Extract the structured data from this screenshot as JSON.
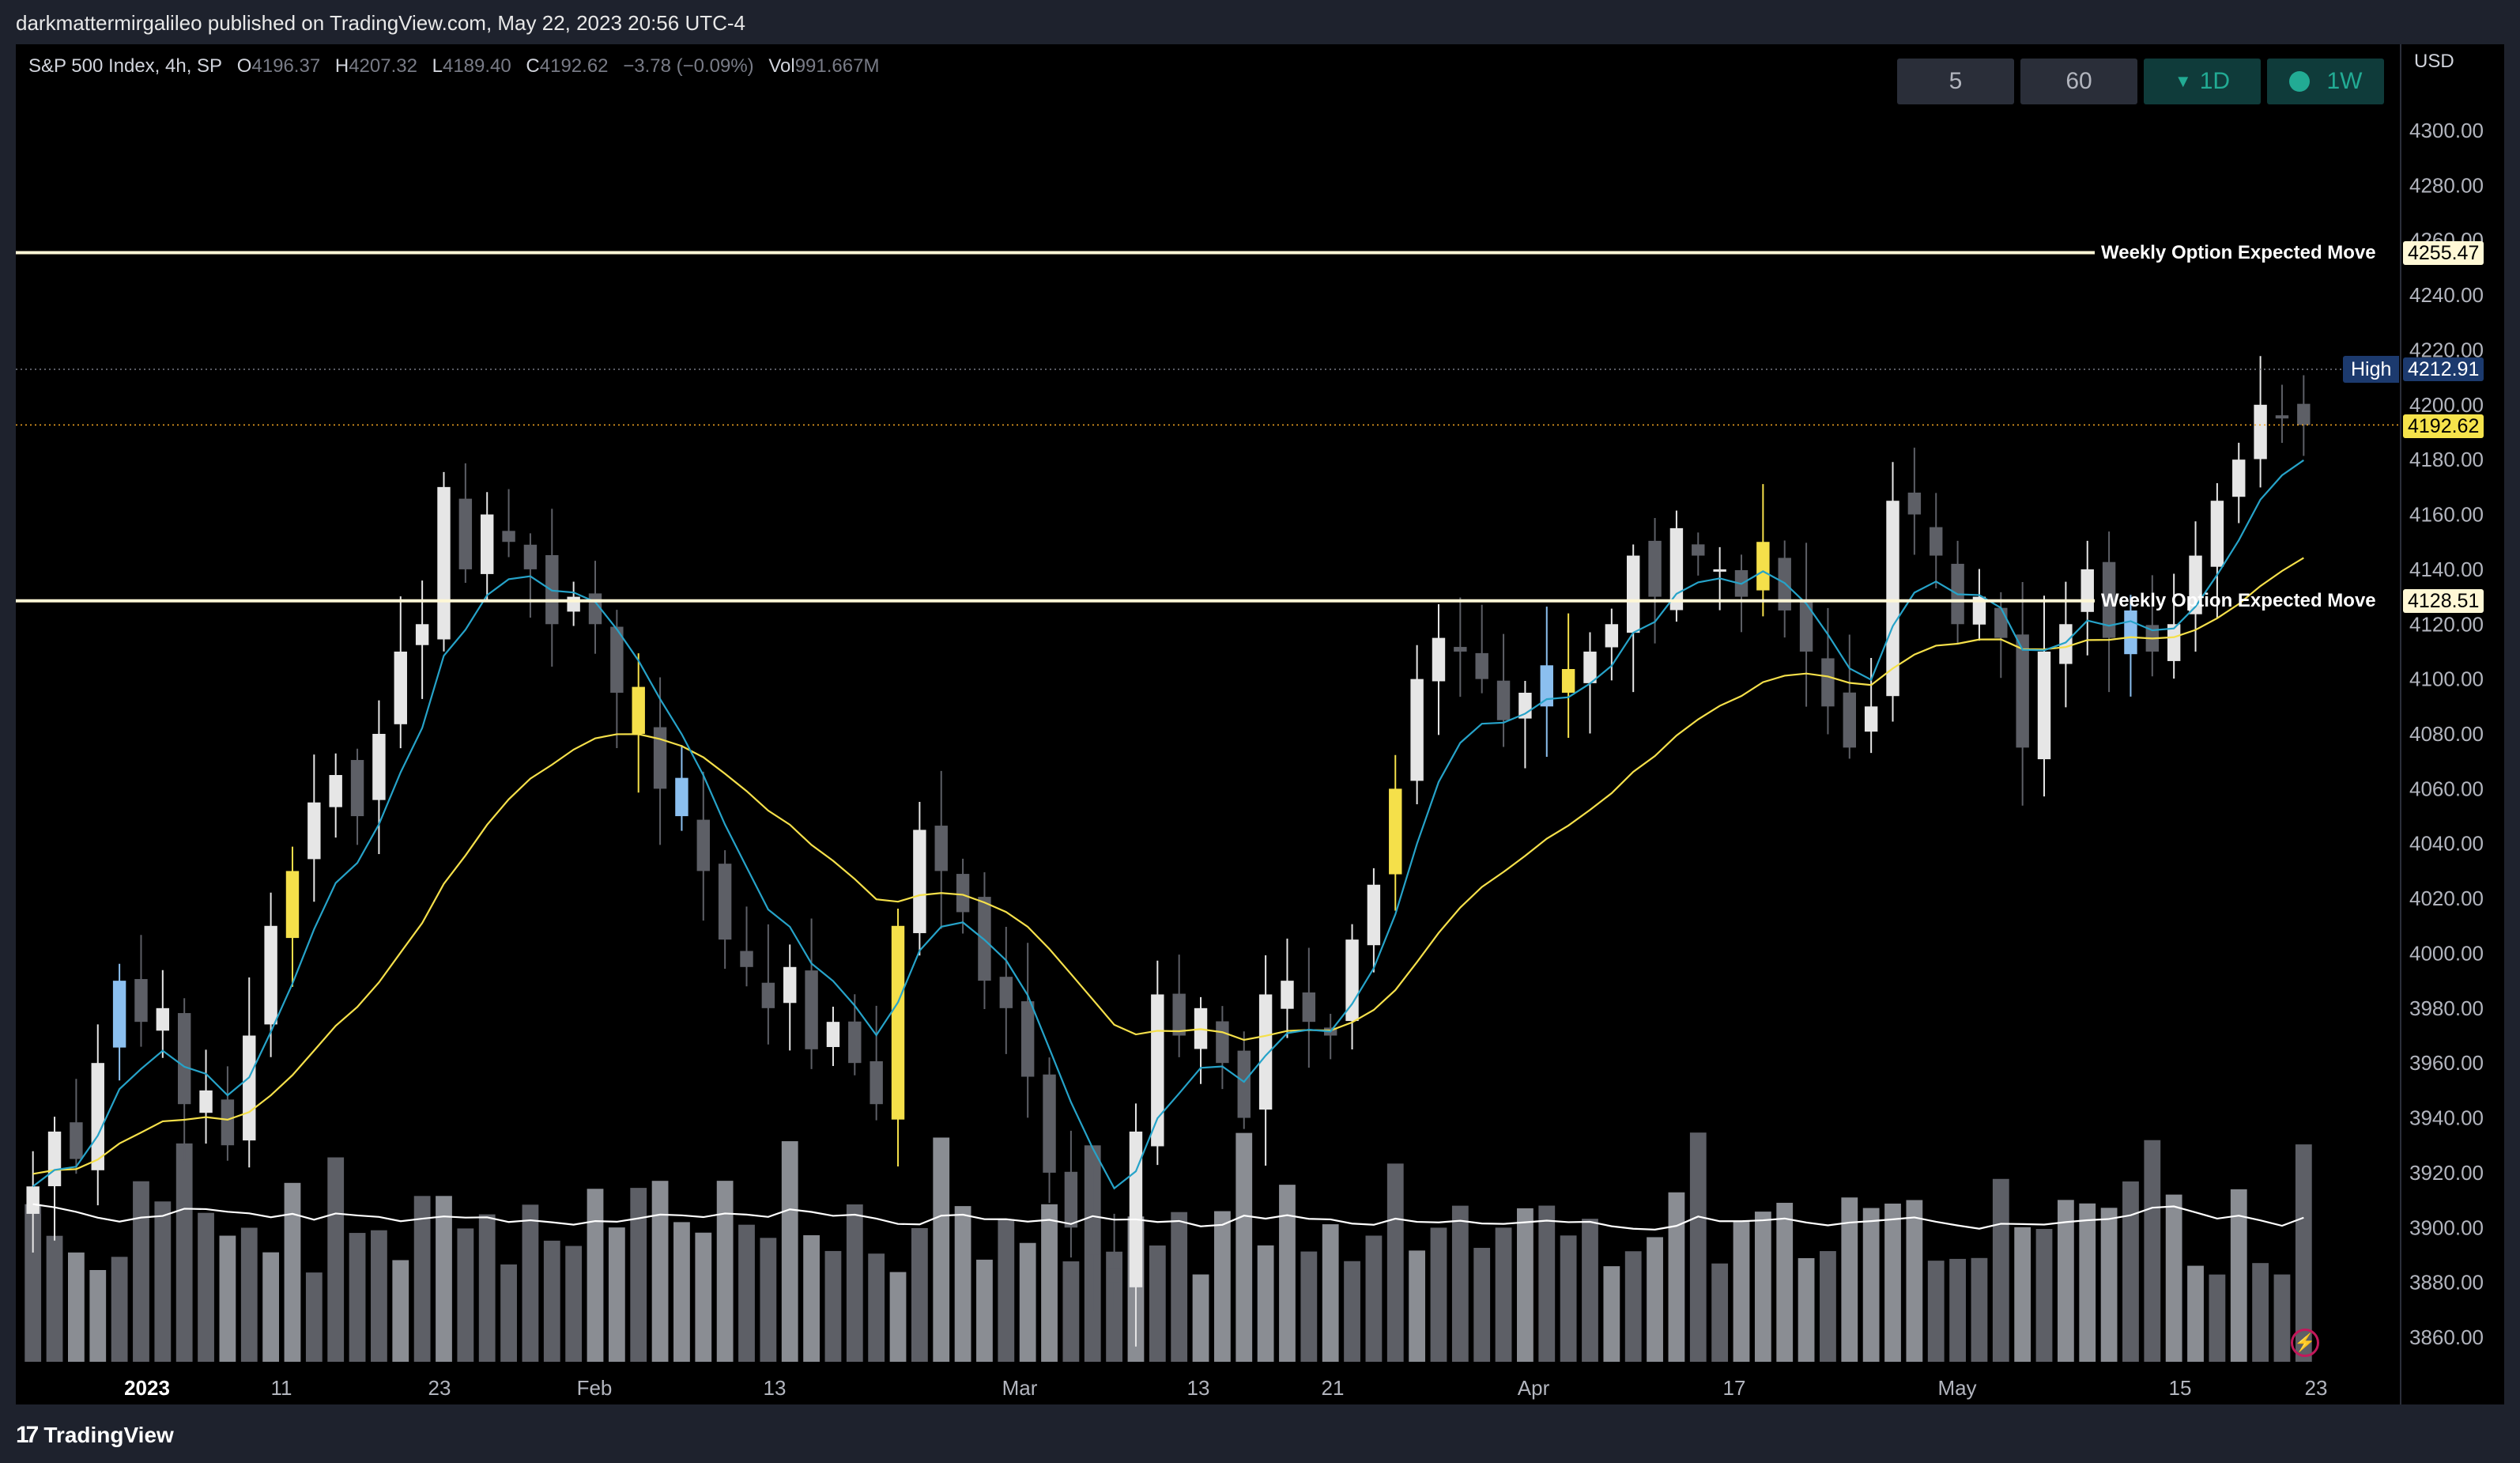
{
  "header": {
    "published": "darkmattermirgalileo published on TradingView.com, May 22, 2023 20:56 UTC-4"
  },
  "symbol": {
    "name": "S&P 500 Index, 4h, SP",
    "open_label": "O",
    "open": "4196.37",
    "high_label": "H",
    "high": "4207.32",
    "low_label": "L",
    "low": "4189.40",
    "close_label": "C",
    "close": "4192.62",
    "change": "−3.78 (−0.09%)",
    "vol_label": "Vol",
    "vol": "991.667M"
  },
  "timeframes": [
    {
      "label": "5"
    },
    {
      "label": "60"
    },
    {
      "label": "1D",
      "icon": "triangle-down-icon"
    },
    {
      "label": "1W",
      "icon": "dot-icon"
    }
  ],
  "price_axis": {
    "currency": "USD",
    "ticks": [
      "4300.00",
      "4280.00",
      "4260.00",
      "4240.00",
      "4220.00",
      "4200.00",
      "4180.00",
      "4160.00",
      "4140.00",
      "4120.00",
      "4100.00",
      "4080.00",
      "4060.00",
      "4040.00",
      "4020.00",
      "4000.00",
      "3980.00",
      "3960.00",
      "3940.00",
      "3920.00",
      "3900.00",
      "3880.00",
      "3860.00"
    ]
  },
  "time_axis": {
    "ticks": [
      "2023",
      "11",
      "23",
      "Feb",
      "13",
      "Mar",
      "13",
      "21",
      "Apr",
      "17",
      "May",
      "15",
      "23"
    ]
  },
  "levels": {
    "upper": {
      "label": "Weekly Option Expected Move",
      "value": "4255.47"
    },
    "lower": {
      "label": "Weekly Option Expected Move",
      "value": "4128.51"
    },
    "high": {
      "label": "High",
      "value": "4212.91"
    },
    "last": {
      "value": "4192.62"
    }
  },
  "colors": {
    "background": "#000000",
    "ema_fast": "#26a3c9",
    "ema_slow": "#f5e04a",
    "volume_ma": "#ffffff",
    "candle_up": "#e6e6e6",
    "candle_down": "#5d5f66",
    "candle_blue": "#8bbfef",
    "candle_yellow": "#f5e04a",
    "level_line": "#fff8d6",
    "last_price_tag": "#f5e34b"
  },
  "footer": {
    "brand": "TradingView",
    "logo_icon": "tradingview-logo-icon"
  },
  "chart_data": {
    "type": "candlestick",
    "title": "S&P 500 Index, 4h, SP",
    "ylim": [
      3850,
      4320
    ],
    "x_ticks": [
      "2023",
      "11",
      "23",
      "Feb",
      "13",
      "Mar",
      "13",
      "21",
      "Apr",
      "17",
      "May",
      "15",
      "23"
    ],
    "series": [
      {
        "name": "S&P 500 Index 4h close (approx.)",
        "values": [
          3915,
          3935,
          3925,
          3960,
          3990,
          3975,
          3980,
          3945,
          3950,
          3930,
          3970,
          4010,
          4030,
          4055,
          4065,
          4050,
          4080,
          4110,
          4120,
          4170,
          4140,
          4160,
          4150,
          4140,
          4120,
          4130,
          4120,
          4095,
          4080,
          4060,
          4050,
          4030,
          4005,
          3995,
          3980,
          3995,
          3965,
          3975,
          3960,
          3945,
          4010,
          4045,
          4030,
          4015,
          3990,
          3980,
          3955,
          3920,
          3900,
          3890,
          3880,
          3935,
          3985,
          3970,
          3980,
          3960,
          3940,
          3985,
          3990,
          3975,
          3970,
          4005,
          4025,
          4060,
          4100,
          4115,
          4110,
          4100,
          4085,
          4095,
          4105,
          4095,
          4110,
          4120,
          4145,
          4130,
          4155,
          4145,
          4140,
          4130,
          4150,
          4125,
          4110,
          4090,
          4075,
          4090,
          4165,
          4160,
          4145,
          4120,
          4130,
          4115,
          4075,
          4110,
          4120,
          4140,
          4115,
          4125,
          4110,
          4120,
          4145,
          4165,
          4180,
          4200,
          4195,
          4192.62
        ]
      },
      {
        "name": "Weekly Option Expected Move (upper)",
        "value": 4255.47
      },
      {
        "name": "Weekly Option Expected Move (lower)",
        "value": 4128.51
      },
      {
        "name": "High",
        "value": 4212.91
      }
    ]
  }
}
